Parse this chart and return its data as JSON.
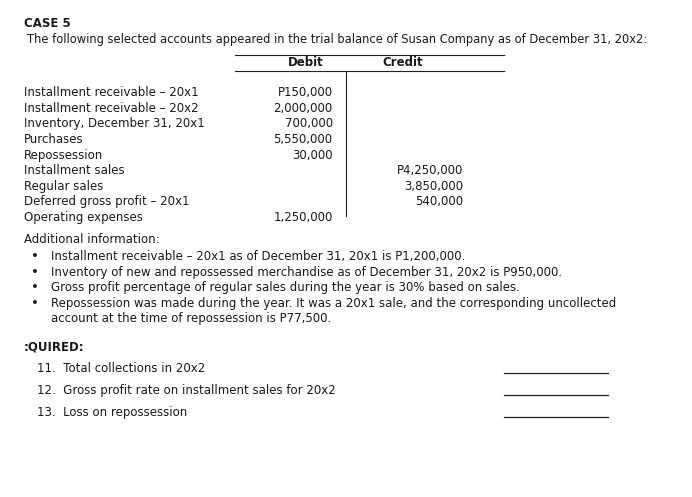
{
  "title_bold": "CASE 5",
  "subtitle": "The following selected accounts appeared in the trial balance of Susan Company as of December 31, 20x2:",
  "col_debit_label": "Debit",
  "col_credit_label": "Credit",
  "accounts": [
    {
      "name": "Installment receivable – 20x1",
      "debit": "P150,000",
      "credit": ""
    },
    {
      "name": "Installment receivable – 20x2",
      "debit": "2,000,000",
      "credit": ""
    },
    {
      "name": "Inventory, December 31, 20x1",
      "debit": "700,000",
      "credit": ""
    },
    {
      "name": "Purchases",
      "debit": "5,550,000",
      "credit": ""
    },
    {
      "name": "Repossession",
      "debit": "30,000",
      "credit": ""
    },
    {
      "name": "Installment sales",
      "debit": "",
      "credit": "P4,250,000"
    },
    {
      "name": "Regular sales",
      "debit": "",
      "credit": "3,850,000"
    },
    {
      "name": "Deferred gross profit – 20x1",
      "debit": "",
      "credit": "540,000"
    },
    {
      "name": "Operating expenses",
      "debit": "1,250,000",
      "credit": ""
    }
  ],
  "additional_info_label": "Additional information:",
  "bullets": [
    "Installment receivable – 20x1 as of December 31, 20x1 is P1,200,000.",
    "Inventory of new and repossessed merchandise as of December 31, 20x2 is P950,000.",
    "Gross profit percentage of regular sales during the year is 30% based on sales.",
    "Repossession was made during the year. It was a 20x1 sale, and the corresponding uncollected|account at the time of repossession is P77,500."
  ],
  "required_label": ":QUIRED:",
  "questions": [
    "11.  Total collections in 20x2",
    "12.  Gross profit rate on installment sales for 20x2",
    "13.  Loss on repossession"
  ],
  "bg_color": "#ffffff",
  "text_color": "#1a1a1a",
  "font_size": 8.5,
  "font_family": "DejaVu Sans"
}
